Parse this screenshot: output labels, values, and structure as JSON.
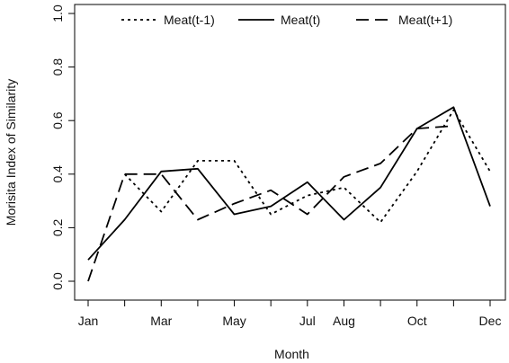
{
  "chart_data": {
    "type": "line",
    "title": "",
    "xlabel": "Month",
    "ylabel": "Morisita Index of Similarity",
    "x": [
      1,
      2,
      3,
      4,
      5,
      6,
      7,
      8,
      9,
      10,
      11,
      12
    ],
    "xticks": [
      {
        "x": 1,
        "label": "Jan"
      },
      {
        "x": 2,
        "label": ""
      },
      {
        "x": 3,
        "label": "Mar"
      },
      {
        "x": 4,
        "label": ""
      },
      {
        "x": 5,
        "label": "May"
      },
      {
        "x": 6,
        "label": ""
      },
      {
        "x": 7,
        "label": "Jul"
      },
      {
        "x": 8,
        "label": "Aug"
      },
      {
        "x": 9,
        "label": ""
      },
      {
        "x": 10,
        "label": "Oct"
      },
      {
        "x": 11,
        "label": ""
      },
      {
        "x": 12,
        "label": "Dec"
      }
    ],
    "yticks": [
      "0.0",
      "0.2",
      "0.4",
      "0.6",
      "0.8",
      "1.0"
    ],
    "xlim": [
      1,
      12
    ],
    "ylim": [
      0,
      1
    ],
    "grid": false,
    "legend_position": "top",
    "series": [
      {
        "name": "Meat(t-1)",
        "line_style": "dotted",
        "color": "#000000",
        "points": [
          {
            "x": 2,
            "y": 0.4
          },
          {
            "x": 3,
            "y": 0.26
          },
          {
            "x": 4,
            "y": 0.45
          },
          {
            "x": 5,
            "y": 0.45
          },
          {
            "x": 6,
            "y": 0.25
          },
          {
            "x": 7,
            "y": 0.32
          },
          {
            "x": 8,
            "y": 0.35
          },
          {
            "x": 9,
            "y": 0.22
          },
          {
            "x": 10,
            "y": 0.41
          },
          {
            "x": 11,
            "y": 0.64
          },
          {
            "x": 12,
            "y": 0.41
          }
        ]
      },
      {
        "name": "Meat(t)",
        "line_style": "solid",
        "color": "#000000",
        "points": [
          {
            "x": 1,
            "y": 0.08
          },
          {
            "x": 2,
            "y": 0.23
          },
          {
            "x": 3,
            "y": 0.41
          },
          {
            "x": 4,
            "y": 0.42
          },
          {
            "x": 5,
            "y": 0.25
          },
          {
            "x": 6,
            "y": 0.28
          },
          {
            "x": 7,
            "y": 0.37
          },
          {
            "x": 8,
            "y": 0.23
          },
          {
            "x": 9,
            "y": 0.35
          },
          {
            "x": 10,
            "y": 0.57
          },
          {
            "x": 11,
            "y": 0.65
          },
          {
            "x": 12,
            "y": 0.28
          }
        ]
      },
      {
        "name": "Meat(t+1)",
        "line_style": "dashed",
        "color": "#000000",
        "points": [
          {
            "x": 1,
            "y": 0.0
          },
          {
            "x": 2,
            "y": 0.4
          },
          {
            "x": 3,
            "y": 0.4
          },
          {
            "x": 4,
            "y": 0.23
          },
          {
            "x": 5,
            "y": 0.29
          },
          {
            "x": 6,
            "y": 0.34
          },
          {
            "x": 7,
            "y": 0.25
          },
          {
            "x": 8,
            "y": 0.39
          },
          {
            "x": 9,
            "y": 0.44
          },
          {
            "x": 10,
            "y": 0.57
          },
          {
            "x": 11,
            "y": 0.58
          }
        ]
      }
    ]
  }
}
